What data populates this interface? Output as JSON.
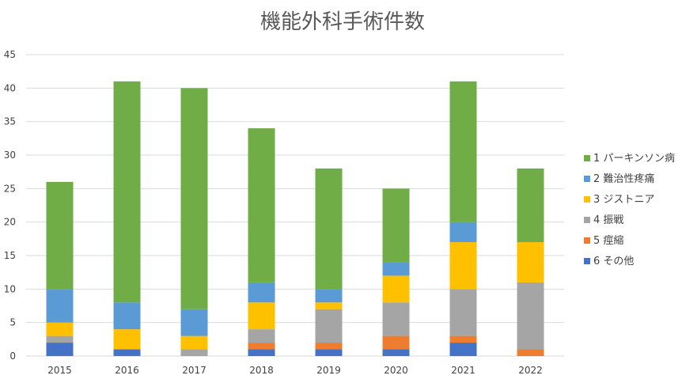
{
  "chart_data": {
    "type": "bar",
    "stacked": true,
    "title": "機能外科手術件数",
    "xlabel": "",
    "ylabel": "",
    "ylim": [
      0,
      45
    ],
    "yticks": [
      0,
      5,
      10,
      15,
      20,
      25,
      30,
      35,
      40,
      45
    ],
    "grid": true,
    "legend": "right",
    "categories": [
      "2015",
      "2016",
      "2017",
      "2018",
      "2019",
      "2020",
      "2021",
      "2022"
    ],
    "series": [
      {
        "name": "6 その他",
        "color": "#4472c4",
        "values": [
          2,
          1,
          0,
          1,
          1,
          1,
          2,
          0
        ]
      },
      {
        "name": "5 痙縮",
        "color": "#ed7d31",
        "values": [
          0,
          0,
          0,
          1,
          1,
          2,
          1,
          1
        ]
      },
      {
        "name": "4 振戦",
        "color": "#a5a5a5",
        "values": [
          1,
          0,
          1,
          2,
          5,
          5,
          7,
          10
        ]
      },
      {
        "name": "3 ジストニア",
        "color": "#ffc000",
        "values": [
          2,
          3,
          2,
          4,
          1,
          4,
          7,
          6
        ]
      },
      {
        "name": "2 難治性疼痛",
        "color": "#5b9bd5",
        "values": [
          5,
          4,
          4,
          3,
          2,
          2,
          3,
          0
        ]
      },
      {
        "name": "1 パーキンソン病",
        "color": "#70ad47",
        "values": [
          16,
          33,
          33,
          23,
          18,
          11,
          21,
          11
        ]
      }
    ]
  }
}
